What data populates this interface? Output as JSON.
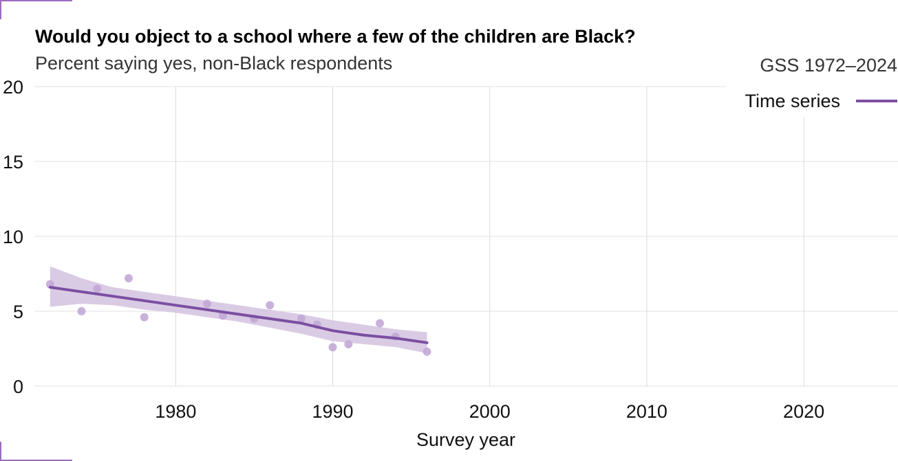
{
  "chart_data": {
    "type": "line",
    "title": "Would you object to a school where a few of the children are Black?",
    "subtitle": "Percent saying yes, non-Black respondents",
    "source": "GSS 1972–2024",
    "xlabel": "Survey year",
    "ylabel": "",
    "xlim": [
      1971,
      2026
    ],
    "ylim": [
      0,
      20
    ],
    "x_ticks": [
      1980,
      1990,
      2000,
      2010,
      2020
    ],
    "y_ticks": [
      0,
      5,
      10,
      15,
      20
    ],
    "grid": true,
    "legend": {
      "placement": "top-right",
      "label": "Time series"
    },
    "colors": {
      "series": "#7b4fa1",
      "band": "#d6c5e2",
      "points": "#c2a9d6"
    },
    "points": {
      "x": [
        1972,
        1974,
        1975,
        1977,
        1978,
        1982,
        1983,
        1985,
        1986,
        1988,
        1989,
        1990,
        1991,
        1993,
        1994,
        1996
      ],
      "y": [
        6.8,
        5.0,
        6.5,
        7.2,
        4.6,
        5.5,
        4.7,
        4.5,
        5.4,
        4.5,
        4.1,
        2.6,
        2.8,
        4.2,
        3.3,
        2.3
      ]
    },
    "series": [
      {
        "x": [
          1972,
          1974,
          1976,
          1978,
          1980,
          1982,
          1984,
          1986,
          1988,
          1990,
          1992,
          1994,
          1996
        ],
        "y": [
          6.6,
          6.3,
          6.0,
          5.7,
          5.4,
          5.1,
          4.8,
          4.5,
          4.2,
          3.7,
          3.4,
          3.2,
          2.9
        ]
      }
    ],
    "band": {
      "x": [
        1972,
        1974,
        1976,
        1978,
        1980,
        1982,
        1984,
        1986,
        1988,
        1990,
        1992,
        1994,
        1996
      ],
      "lower": [
        5.3,
        5.5,
        5.4,
        5.1,
        4.9,
        4.6,
        4.3,
        3.9,
        3.5,
        3.0,
        2.8,
        2.6,
        2.2
      ],
      "upper": [
        8.0,
        7.2,
        6.6,
        6.3,
        6.0,
        5.7,
        5.4,
        5.1,
        4.8,
        4.4,
        4.1,
        3.8,
        3.6
      ]
    }
  }
}
